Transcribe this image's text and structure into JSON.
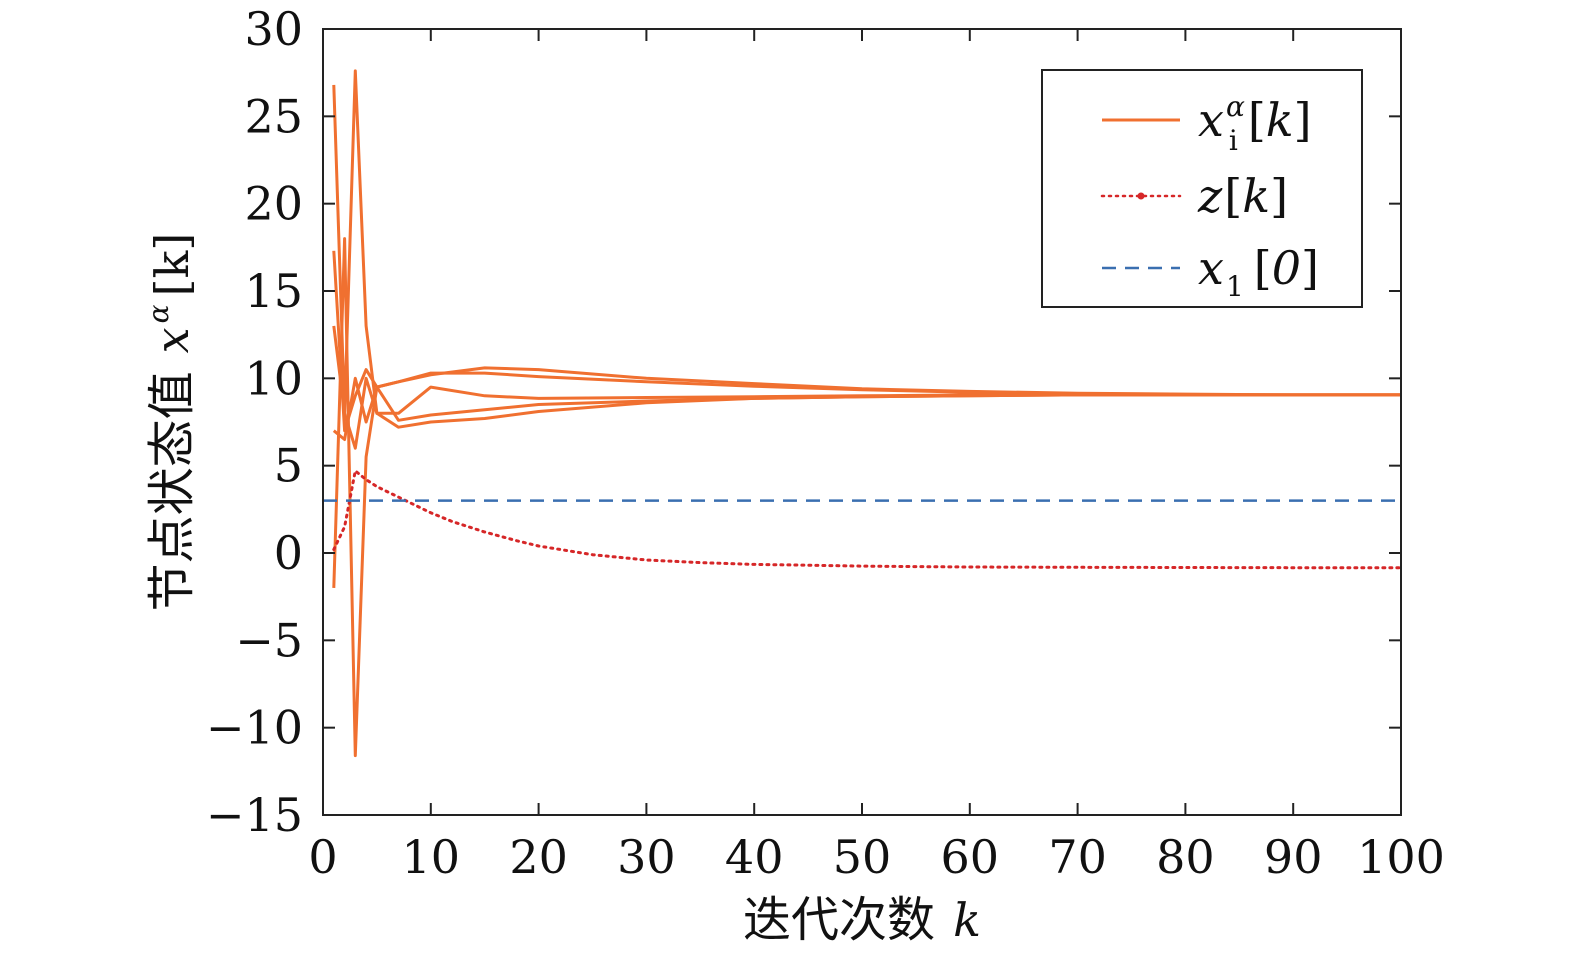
{
  "chart_data": {
    "type": "line",
    "xlabel": "迭代次数",
    "xlabel_var": "k",
    "ylabel": "节点状态值",
    "ylabel_var": "x",
    "ylabel_sup": "α",
    "ylabel_bracket": "[k]",
    "xlim": [
      0,
      100
    ],
    "ylim": [
      -15,
      30
    ],
    "xticks": [
      0,
      10,
      20,
      30,
      40,
      50,
      60,
      70,
      80,
      90,
      100
    ],
    "yticks": [
      -15,
      -10,
      -5,
      0,
      5,
      10,
      15,
      20,
      25,
      30
    ],
    "grid": false,
    "legend_position": "top-right",
    "legend": [
      {
        "var": "x",
        "sub": "i",
        "sup": "α",
        "suffix": "[k]",
        "style": "solid",
        "color": "#f07030"
      },
      {
        "var": "z",
        "sub": "",
        "sup": "",
        "suffix": "[k]",
        "style": "dotted",
        "color": "#d62728"
      },
      {
        "var": "x",
        "sub": "1",
        "sup": "",
        "suffix": "[0]",
        "style": "dashed",
        "color": "#3a6fb0"
      }
    ],
    "series": [
      {
        "group": "x_i",
        "x": [
          1,
          2,
          3,
          4,
          5,
          7,
          10,
          15,
          20,
          30,
          40,
          50,
          60,
          70,
          80,
          90,
          100
        ],
        "y": [
          26.8,
          8,
          27.6,
          13,
          8,
          8,
          9.5,
          9.0,
          8.85,
          8.9,
          8.95,
          9.0,
          9.05,
          9.05,
          9.05,
          9.05,
          9.05
        ]
      },
      {
        "group": "x_i",
        "x": [
          1,
          2,
          3,
          4,
          5,
          7,
          10,
          15,
          20,
          30,
          40,
          50,
          60,
          70,
          80,
          90,
          100
        ],
        "y": [
          -2,
          18,
          -11.6,
          5.5,
          9.5,
          9.8,
          10.2,
          10.6,
          10.5,
          10.0,
          9.7,
          9.4,
          9.25,
          9.15,
          9.1,
          9.05,
          9.05
        ]
      },
      {
        "group": "x_i",
        "x": [
          1,
          2,
          3,
          4,
          5,
          7,
          10,
          15,
          20,
          30,
          40,
          50,
          60,
          70,
          80,
          90,
          100
        ],
        "y": [
          7,
          6.5,
          10,
          7.5,
          9.5,
          9.8,
          10.3,
          10.3,
          10.1,
          9.8,
          9.55,
          9.35,
          9.2,
          9.1,
          9.05,
          9.05,
          9.05
        ]
      },
      {
        "group": "x_i",
        "x": [
          1,
          2,
          3,
          4,
          5,
          7,
          10,
          15,
          20,
          30,
          40,
          50,
          60,
          70,
          80,
          90,
          100
        ],
        "y": [
          17.3,
          7,
          9,
          10.5,
          9.5,
          7.6,
          7.9,
          8.2,
          8.5,
          8.7,
          8.85,
          8.95,
          9.0,
          9.05,
          9.05,
          9.05,
          9.05
        ]
      },
      {
        "group": "x_i",
        "x": [
          1,
          2,
          3,
          4,
          5,
          7,
          10,
          15,
          20,
          30,
          40,
          50,
          60,
          70,
          80,
          90,
          100
        ],
        "y": [
          13,
          8,
          6,
          10,
          8,
          7.2,
          7.5,
          7.7,
          8.1,
          8.6,
          8.85,
          8.95,
          9.0,
          9.05,
          9.05,
          9.05,
          9.05
        ]
      },
      {
        "group": "z",
        "x": [
          1,
          2,
          3,
          4,
          5,
          6,
          7,
          8,
          10,
          12,
          15,
          18,
          20,
          25,
          30,
          35,
          40,
          45,
          50,
          55,
          60,
          70,
          80,
          90,
          100
        ],
        "y": [
          0.2,
          1.5,
          4.7,
          4.2,
          3.8,
          3.5,
          3.2,
          2.9,
          2.3,
          1.8,
          1.2,
          0.7,
          0.4,
          -0.1,
          -0.4,
          -0.55,
          -0.65,
          -0.7,
          -0.75,
          -0.78,
          -0.8,
          -0.82,
          -0.83,
          -0.84,
          -0.85
        ]
      },
      {
        "group": "x1_0",
        "x": [
          0,
          100
        ],
        "y": [
          3,
          3
        ]
      }
    ]
  }
}
